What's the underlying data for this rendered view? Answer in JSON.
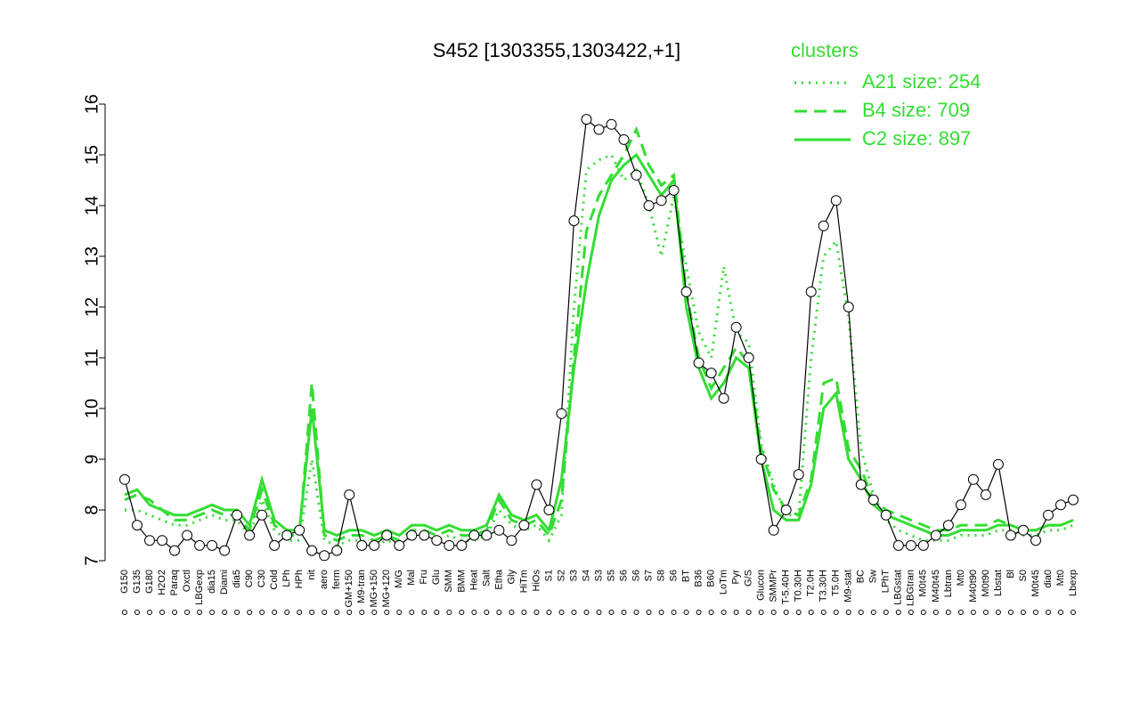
{
  "chart_data": {
    "type": "line",
    "title": "S452 [1303355,1303422,+1]",
    "legend_title": "clusters",
    "legend_position": "top-right",
    "color": "#000000",
    "categories": [
      "G150",
      "G135",
      "G180",
      "H2O2",
      "Paraq",
      "Oxctl",
      "LBGexp",
      "dia15",
      "Diami",
      "dia5",
      "C90",
      "C30",
      "Cold",
      "LPh",
      "HPh",
      "nit",
      "aero",
      "ferm",
      "GM+150",
      "M9-tran",
      "MG+150",
      "MG+120",
      "M/G",
      "Mal",
      "Fru",
      "Glu",
      "SMM",
      "BMM",
      "Heat",
      "Salt",
      "Etha",
      "Gly",
      "HiTm",
      "HiOs",
      "S1",
      "S2",
      "S3",
      "S4",
      "S3",
      "S5",
      "S6",
      "S6",
      "S7",
      "S8",
      "S6",
      "BT",
      "B36",
      "B60",
      "LoTm",
      "Pyr",
      "G/S",
      "Glucon",
      "SMMPr",
      "T-5.40H",
      "T0.30H",
      "T2.0H",
      "T3.30H",
      "T5.0H",
      "M9-stat",
      "BC",
      "Sw",
      "LPhT",
      "LBGstat",
      "LBGtran",
      "M0t45",
      "M40t45",
      "Lbtran",
      "Mt0",
      "M40t90",
      "M0t90",
      "Lbstat",
      "Bl",
      "S0",
      "M0t45",
      "dia0",
      "Mt0",
      "Lbexp"
    ],
    "values": [
      8.6,
      7.7,
      7.4,
      7.4,
      7.2,
      7.5,
      7.3,
      7.3,
      7.2,
      7.9,
      7.5,
      7.9,
      7.3,
      7.5,
      7.6,
      7.2,
      7.1,
      7.2,
      8.3,
      7.3,
      7.3,
      7.5,
      7.3,
      7.5,
      7.5,
      7.4,
      7.3,
      7.3,
      7.5,
      7.5,
      7.6,
      7.4,
      7.7,
      8.5,
      8.0,
      9.9,
      13.7,
      15.7,
      15.5,
      15.6,
      15.3,
      14.6,
      14.0,
      14.1,
      14.3,
      12.3,
      10.9,
      10.7,
      10.2,
      11.6,
      11.0,
      9.0,
      7.6,
      8.0,
      8.7,
      12.3,
      13.6,
      14.1,
      12.0,
      8.5,
      8.2,
      7.9,
      7.3,
      7.3,
      7.3,
      7.5,
      7.7,
      8.1,
      8.6,
      8.3,
      8.9,
      7.5,
      7.6,
      7.4,
      7.9,
      8.1,
      8.2
    ],
    "series": [
      {
        "name": "A21 size: 254",
        "color": "#33dd33",
        "dash": "dotted",
        "values": [
          8.0,
          8.0,
          7.9,
          7.8,
          7.7,
          7.7,
          7.8,
          7.9,
          7.8,
          7.8,
          7.5,
          8.2,
          7.6,
          7.4,
          7.4,
          9.0,
          7.4,
          7.3,
          7.4,
          7.4,
          7.3,
          7.4,
          7.3,
          7.5,
          7.5,
          7.4,
          7.5,
          7.4,
          7.4,
          7.5,
          8.0,
          7.7,
          7.6,
          7.7,
          7.4,
          7.9,
          12.0,
          14.7,
          14.9,
          15.0,
          14.5,
          14.7,
          14.0,
          13.0,
          14.2,
          12.8,
          11.5,
          11.0,
          12.8,
          11.5,
          11.3,
          9.3,
          8.5,
          7.9,
          7.9,
          11.0,
          13.0,
          13.3,
          11.8,
          9.2,
          8.3,
          7.8,
          7.6,
          7.5,
          7.4,
          7.4,
          7.4,
          7.5,
          7.5,
          7.5,
          7.6,
          7.6,
          7.5,
          7.5,
          7.6,
          7.6,
          7.7
        ]
      },
      {
        "name": "B4 size: 709",
        "color": "#33dd33",
        "dash": "dashed",
        "values": [
          8.2,
          8.3,
          8.2,
          8.0,
          7.8,
          7.8,
          7.9,
          8.0,
          7.9,
          7.9,
          7.6,
          8.4,
          7.7,
          7.5,
          7.5,
          10.5,
          7.5,
          7.4,
          7.5,
          7.5,
          7.4,
          7.5,
          7.4,
          7.6,
          7.6,
          7.5,
          7.6,
          7.5,
          7.5,
          7.6,
          8.2,
          7.8,
          7.7,
          7.8,
          7.5,
          8.2,
          11.0,
          13.5,
          14.2,
          14.6,
          15.0,
          15.5,
          14.8,
          14.4,
          14.6,
          12.3,
          11.0,
          10.4,
          10.8,
          11.2,
          10.9,
          9.2,
          8.4,
          8.0,
          7.9,
          8.6,
          10.5,
          10.6,
          9.2,
          8.8,
          8.2,
          8.0,
          7.9,
          7.8,
          7.7,
          7.6,
          7.6,
          7.7,
          7.7,
          7.7,
          7.8,
          7.7,
          7.6,
          7.6,
          7.7,
          7.7,
          7.8
        ]
      },
      {
        "name": "C2 size: 897",
        "color": "#33dd33",
        "dash": "solid",
        "values": [
          8.3,
          8.4,
          8.1,
          8.0,
          7.9,
          7.9,
          8.0,
          8.1,
          8.0,
          8.0,
          7.7,
          8.6,
          7.8,
          7.6,
          7.6,
          10.0,
          7.6,
          7.5,
          7.6,
          7.6,
          7.5,
          7.6,
          7.5,
          7.7,
          7.7,
          7.6,
          7.7,
          7.6,
          7.6,
          7.7,
          8.3,
          7.9,
          7.8,
          7.9,
          7.6,
          8.6,
          10.8,
          12.5,
          13.8,
          14.5,
          14.8,
          15.0,
          14.6,
          14.2,
          14.5,
          12.0,
          10.8,
          10.2,
          10.5,
          11.0,
          10.8,
          9.0,
          8.0,
          7.8,
          7.8,
          8.5,
          10.0,
          10.3,
          9.0,
          8.6,
          8.1,
          7.9,
          7.8,
          7.7,
          7.6,
          7.5,
          7.5,
          7.6,
          7.6,
          7.6,
          7.7,
          7.7,
          7.6,
          7.6,
          7.7,
          7.7,
          7.8
        ]
      }
    ],
    "ylim": [
      7,
      16
    ],
    "yticks": [
      7,
      8,
      9,
      10,
      11,
      12,
      13,
      14,
      15,
      16
    ],
    "grid": false
  }
}
